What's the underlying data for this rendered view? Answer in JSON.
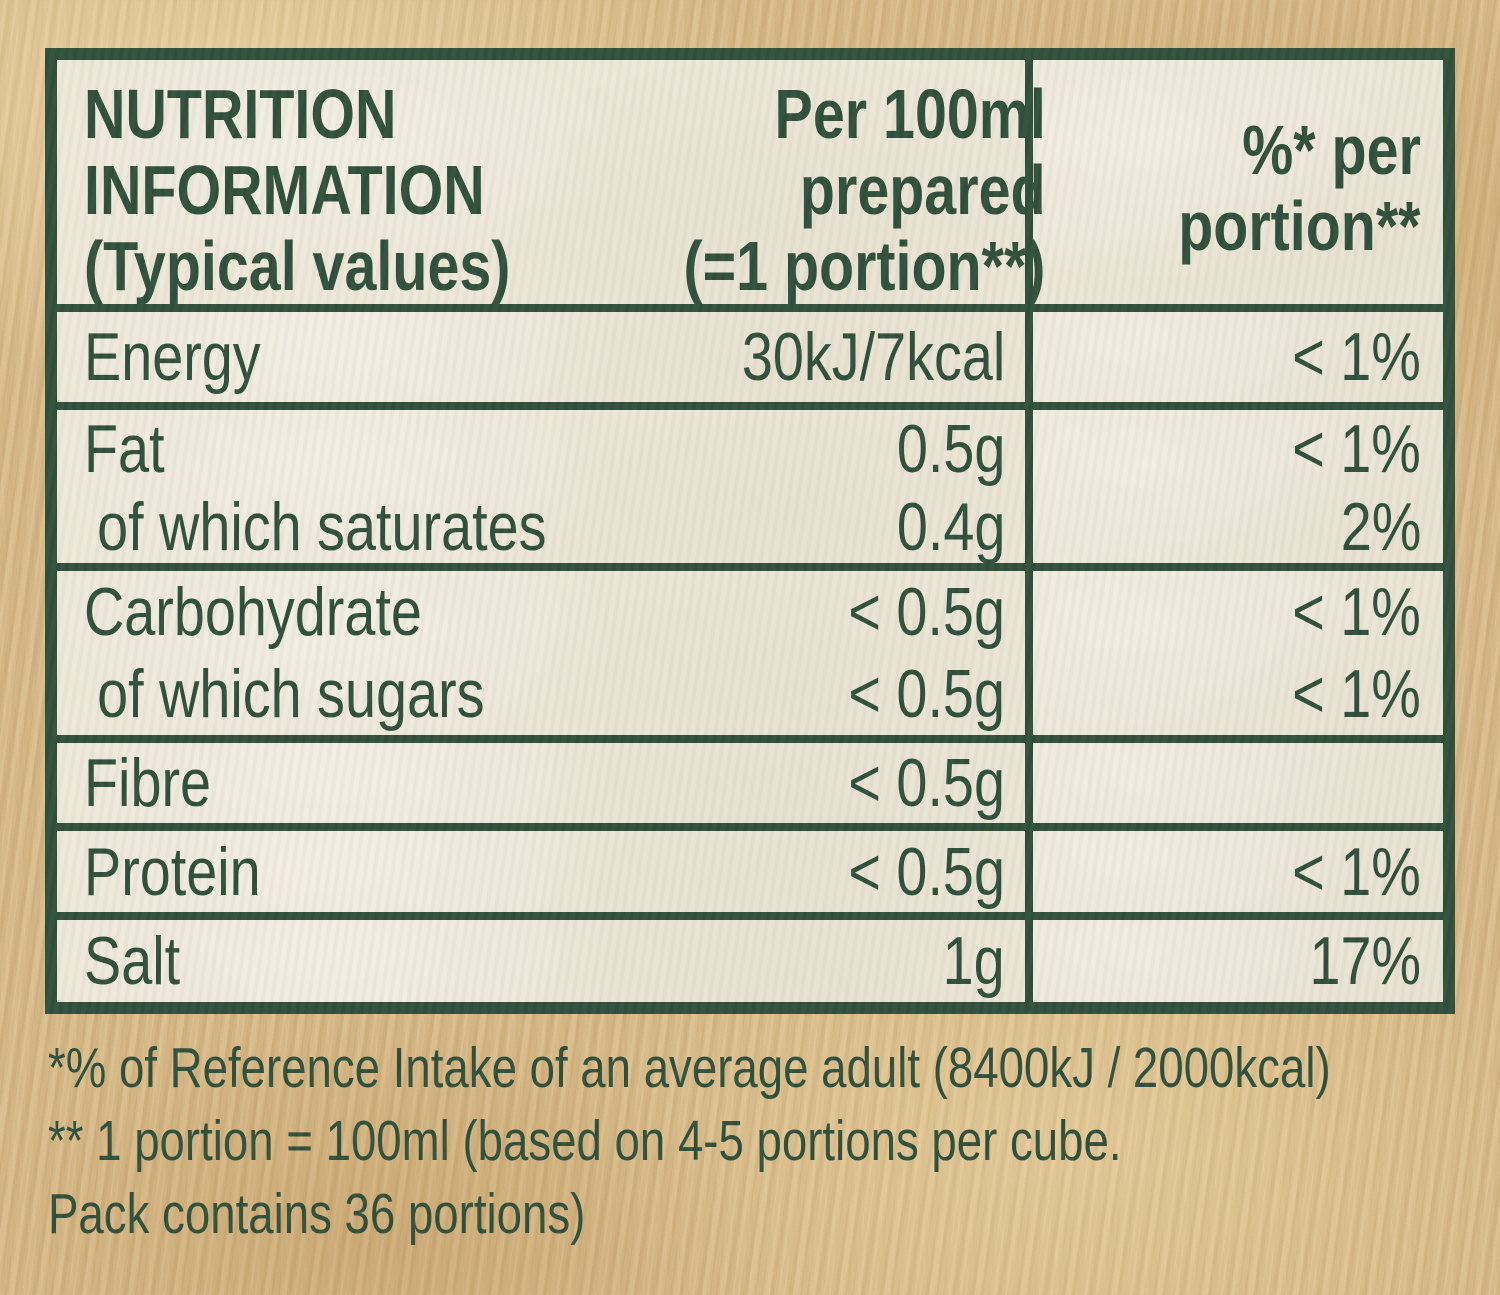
{
  "colors": {
    "green": "#2d4e3a",
    "cream": "#ece7d9",
    "tan": "#d7b885"
  },
  "header": {
    "col1": [
      "NUTRITION",
      "INFORMATION",
      "(Typical values)"
    ],
    "col2": [
      "Per 100ml",
      "prepared",
      "(=1 portion**)"
    ],
    "col3": [
      "%* per",
      "portion**"
    ]
  },
  "rows": {
    "energy": {
      "label": "Energy",
      "value": "30kJ/7kcal",
      "pct": "< 1%"
    },
    "fat": {
      "label": "Fat",
      "value": "0.5g",
      "pct": "< 1%"
    },
    "saturates": {
      "label": "of which saturates",
      "value": "0.4g",
      "pct": "2%"
    },
    "carbohydrate": {
      "label": "Carbohydrate",
      "value": "< 0.5g",
      "pct": "< 1%"
    },
    "sugars": {
      "label": "of which sugars",
      "value": "< 0.5g",
      "pct": "< 1%"
    },
    "fibre": {
      "label": "Fibre",
      "value": "< 0.5g",
      "pct": ""
    },
    "protein": {
      "label": "Protein",
      "value": "< 0.5g",
      "pct": "< 1%"
    },
    "salt": {
      "label": "Salt",
      "value": "1g",
      "pct": "17%"
    }
  },
  "footnotes": [
    "*% of Reference Intake of an average adult (8400kJ / 2000kcal)",
    "** 1 portion = 100ml (based on 4-5 portions per cube.",
    "Pack contains 36 portions)"
  ]
}
